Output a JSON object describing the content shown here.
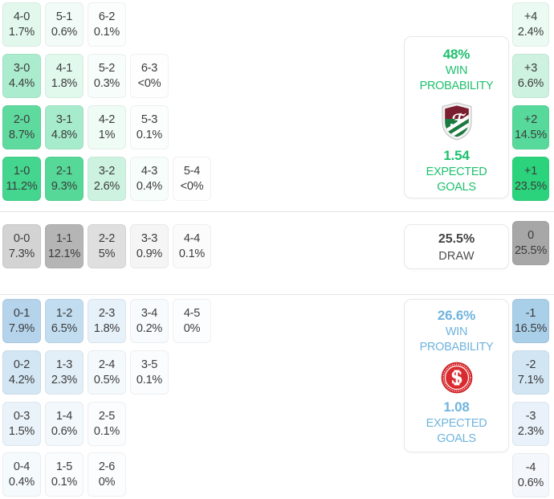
{
  "accent": {
    "home_green": "#1fc06e",
    "away_blue": "#6fb4dd",
    "draw_gray": "#a7a7a7"
  },
  "home": {
    "win_probability": "48%",
    "win_label_line1": "WIN",
    "win_label_line2": "PROBABILITY",
    "expected_goals": "1.54",
    "eg_label_line1": "EXPECTED",
    "eg_label_line2": "GOALS",
    "badge_icon": "fluminense-crest-icon",
    "rows": [
      [
        {
          "score": "4-0",
          "pct": "1.7%",
          "bg": "#e2f8ed"
        },
        {
          "score": "5-1",
          "pct": "0.6%",
          "bg": "#f2fbf7"
        },
        {
          "score": "6-2",
          "pct": "0.1%",
          "bg": "#fbfefc"
        }
      ],
      [
        {
          "score": "3-0",
          "pct": "4.4%",
          "bg": "#abecce"
        },
        {
          "score": "4-1",
          "pct": "1.8%",
          "bg": "#e1f8ec"
        },
        {
          "score": "5-2",
          "pct": "0.3%",
          "bg": "#f7fdfa"
        },
        {
          "score": "6-3",
          "pct": "<0%",
          "bg": "#fdfefd"
        }
      ],
      [
        {
          "score": "2-0",
          "pct": "8.7%",
          "bg": "#5fda9e"
        },
        {
          "score": "3-1",
          "pct": "4.8%",
          "bg": "#a6ebcb"
        },
        {
          "score": "4-2",
          "pct": "1%",
          "bg": "#effbf5"
        },
        {
          "score": "5-3",
          "pct": "0.1%",
          "bg": "#fbfefc"
        }
      ],
      [
        {
          "score": "1-0",
          "pct": "11.2%",
          "bg": "#44d58e"
        },
        {
          "score": "2-1",
          "pct": "9.3%",
          "bg": "#56d898"
        },
        {
          "score": "3-2",
          "pct": "2.6%",
          "bg": "#cdf3e0"
        },
        {
          "score": "4-3",
          "pct": "0.4%",
          "bg": "#f6fdfa"
        },
        {
          "score": "5-4",
          "pct": "<0%",
          "bg": "#fdfefd"
        }
      ]
    ],
    "diffs": [
      {
        "score": "+4",
        "pct": "2.4%",
        "bg": "#ebfaf3"
      },
      {
        "score": "+3",
        "pct": "6.6%",
        "bg": "#cdf2e0"
      },
      {
        "score": "+2",
        "pct": "14.5%",
        "bg": "#57d99b"
      },
      {
        "score": "+1",
        "pct": "23.5%",
        "bg": "#2bd47c"
      }
    ]
  },
  "draw": {
    "probability": "25.5%",
    "label": "DRAW",
    "cells": [
      {
        "score": "0-0",
        "pct": "7.3%",
        "bg": "#d3d3d3"
      },
      {
        "score": "1-1",
        "pct": "12.1%",
        "bg": "#b5b5b5"
      },
      {
        "score": "2-2",
        "pct": "5%",
        "bg": "#dfdfdf"
      },
      {
        "score": "3-3",
        "pct": "0.9%",
        "bg": "#f5f5f5"
      },
      {
        "score": "4-4",
        "pct": "0.1%",
        "bg": "#fbfbfb"
      }
    ],
    "diff": {
      "score": "0",
      "pct": "25.5%",
      "bg": "#a7a7a7"
    }
  },
  "away": {
    "win_probability": "26.6%",
    "win_label_line1": "WIN",
    "win_label_line2": "PROBABILITY",
    "expected_goals": "1.08",
    "eg_label_line1": "EXPECTED",
    "eg_label_line2": "GOALS",
    "badge_icon": "internacional-crest-icon",
    "rows": [
      [
        {
          "score": "0-1",
          "pct": "7.9%",
          "bg": "#b5d4ec"
        },
        {
          "score": "1-2",
          "pct": "6.5%",
          "bg": "#c2ddf0"
        },
        {
          "score": "2-3",
          "pct": "1.8%",
          "bg": "#e7f1f9"
        },
        {
          "score": "3-4",
          "pct": "0.2%",
          "bg": "#f8fbfd"
        },
        {
          "score": "4-5",
          "pct": "0%",
          "bg": "#fcfdfe"
        }
      ],
      [
        {
          "score": "0-2",
          "pct": "4.2%",
          "bg": "#d3e6f4"
        },
        {
          "score": "1-3",
          "pct": "2.3%",
          "bg": "#e3eff8"
        },
        {
          "score": "2-4",
          "pct": "0.5%",
          "bg": "#f4f9fc"
        },
        {
          "score": "3-5",
          "pct": "0.1%",
          "bg": "#fafcfe"
        }
      ],
      [
        {
          "score": "0-3",
          "pct": "1.5%",
          "bg": "#eaf3fa"
        },
        {
          "score": "1-4",
          "pct": "0.6%",
          "bg": "#f3f8fc"
        },
        {
          "score": "2-5",
          "pct": "0.1%",
          "bg": "#fafcfe"
        }
      ],
      [
        {
          "score": "0-4",
          "pct": "0.4%",
          "bg": "#f5fafd"
        },
        {
          "score": "1-5",
          "pct": "0.1%",
          "bg": "#fafcfe"
        },
        {
          "score": "2-6",
          "pct": "0%",
          "bg": "#fcfdfe"
        }
      ]
    ],
    "diffs": [
      {
        "score": "-1",
        "pct": "16.5%",
        "bg": "#a9cfe9"
      },
      {
        "score": "-2",
        "pct": "7.1%",
        "bg": "#d2e5f3"
      },
      {
        "score": "-3",
        "pct": "2.3%",
        "bg": "#e9f2fa"
      },
      {
        "score": "-4",
        "pct": "0.6%",
        "bg": "#f4f8fc"
      }
    ]
  }
}
